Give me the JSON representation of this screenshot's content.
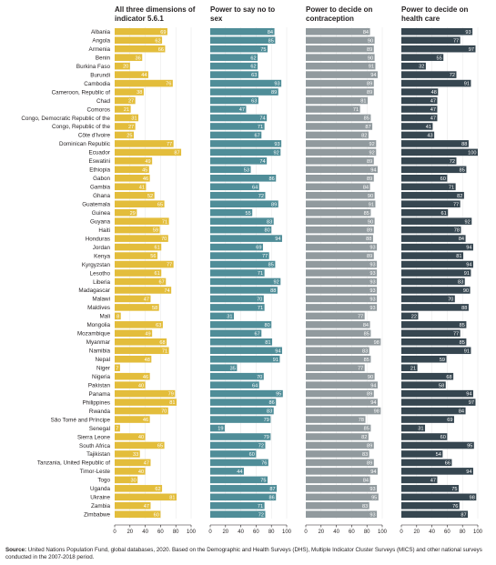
{
  "source": {
    "label": "Source:",
    "text": "United Nations Population Fund, global databases, 2020. Based on the Demographic and Health Surveys (DHS), Multiple Indicator Cluster Surveys (MICS) and other national surveys conducted in the 2007-2018 period."
  },
  "colors": {
    "panel1": "#e3bd3b",
    "panel2": "#4f8d98",
    "panel3": "#919a9e",
    "panel4": "#364650",
    "axis": "#231f20",
    "grid": "#e6e6e6"
  },
  "chart_data": {
    "type": "bar",
    "orientation": "horizontal",
    "xlim": [
      0,
      100
    ],
    "xticks": [
      0,
      20,
      40,
      60,
      80,
      100
    ],
    "categories": [
      "Albania",
      "Angola",
      "Armenia",
      "Benin",
      "Burkina Faso",
      "Burundi",
      "Cambodia",
      "Cameroon, Republic of",
      "Chad",
      "Comoros",
      "Congo, Democratic Republic of the",
      "Congo, Republic of the",
      "Côte d'Ivoire",
      "Dominican Republic",
      "Ecuador",
      "Eswatini",
      "Ethiopia",
      "Gabon",
      "Gambia",
      "Ghana",
      "Guatemala",
      "Guinea",
      "Guyana",
      "Haiti",
      "Honduras",
      "Jordan",
      "Kenya",
      "Kyrgyzstan",
      "Lesotho",
      "Liberia",
      "Madagascar",
      "Malawi",
      "Maldives",
      "Mali",
      "Mongolia",
      "Mozambique",
      "Myanmar",
      "Namibia",
      "Nepal",
      "Niger",
      "Nigeria",
      "Pakistan",
      "Panama",
      "Philippines",
      "Rwanda",
      "São Tomé and Príncipe",
      "Senegal",
      "Sierra Leone",
      "South Africa",
      "Tajikistan",
      "Tanzania, United Republic of",
      "Timor-Leste",
      "Togo",
      "Uganda",
      "Ukraine",
      "Zambia",
      "Zimbabwe"
    ],
    "series": [
      {
        "name": "All three dimensions of indicator 5.6.1",
        "values": [
          69,
          62,
          66,
          36,
          20,
          44,
          76,
          38,
          27,
          21,
          31,
          27,
          25,
          77,
          87,
          49,
          45,
          46,
          41,
          52,
          65,
          29,
          71,
          59,
          70,
          61,
          56,
          77,
          61,
          67,
          74,
          47,
          58,
          8,
          63,
          49,
          68,
          71,
          48,
          7,
          46,
          40,
          79,
          81,
          70,
          46,
          7,
          40,
          65,
          33,
          47,
          40,
          30,
          62,
          81,
          47,
          60
        ]
      },
      {
        "name": "Power to say no to sex",
        "values": [
          84,
          85,
          75,
          62,
          62,
          63,
          93,
          89,
          63,
          47,
          74,
          71,
          67,
          93,
          92,
          74,
          53,
          86,
          64,
          72,
          89,
          55,
          83,
          80,
          94,
          69,
          77,
          85,
          71,
          92,
          88,
          70,
          71,
          31,
          80,
          67,
          81,
          94,
          91,
          35,
          70,
          64,
          95,
          86,
          83,
          79,
          19,
          79,
          72,
          60,
          76,
          44,
          75,
          87,
          86,
          71,
          72
        ]
      },
      {
        "name": "Power to decide on contraception",
        "values": [
          84,
          90,
          89,
          90,
          91,
          94,
          89,
          89,
          81,
          71,
          85,
          87,
          82,
          92,
          92,
          89,
          94,
          89,
          84,
          90,
          91,
          85,
          90,
          89,
          88,
          93,
          89,
          93,
          93,
          93,
          93,
          93,
          93,
          77,
          84,
          85,
          98,
          83,
          85,
          77,
          90,
          94,
          89,
          94,
          98,
          78,
          85,
          82,
          89,
          83,
          89,
          94,
          84,
          93,
          95,
          83,
          93
        ]
      },
      {
        "name": "Power to decide on health care",
        "values": [
          93,
          77,
          97,
          55,
          32,
          72,
          91,
          48,
          47,
          47,
          47,
          41,
          43,
          88,
          100,
          72,
          85,
          60,
          71,
          82,
          77,
          61,
          92,
          78,
          84,
          94,
          81,
          94,
          91,
          83,
          90,
          70,
          88,
          22,
          85,
          77,
          85,
          91,
          59,
          21,
          68,
          58,
          94,
          97,
          84,
          69,
          31,
          60,
          95,
          54,
          66,
          94,
          47,
          75,
          98,
          76,
          87
        ]
      }
    ]
  }
}
